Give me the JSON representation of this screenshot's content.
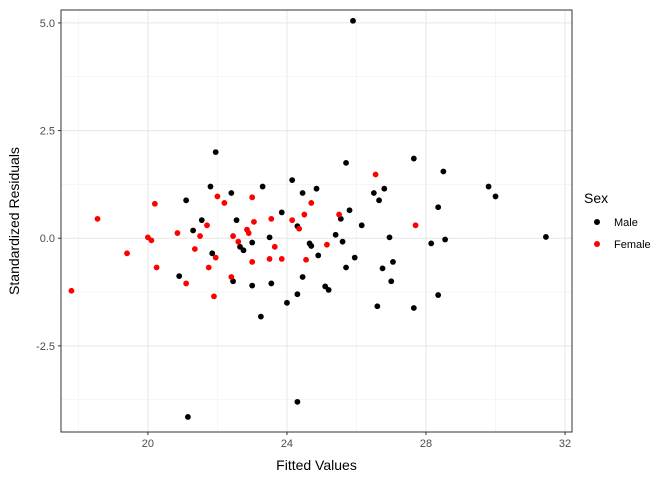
{
  "chart_data": {
    "type": "scatter",
    "xlabel": "Fitted Values",
    "ylabel": "Standardized Residuals",
    "xlim": [
      17.5,
      32.2
    ],
    "ylim": [
      -4.5,
      5.3
    ],
    "x_ticks": [
      20,
      24,
      28,
      32
    ],
    "y_ticks": [
      -2.5,
      0.0,
      2.5,
      5.0
    ],
    "x_tick_labels": [
      "20",
      "24",
      "28",
      "32"
    ],
    "y_tick_labels": [
      "-2.5",
      "0.0",
      "2.5",
      "5.0"
    ],
    "grid": true,
    "legend": {
      "title": "Sex",
      "position": "right",
      "entries": [
        {
          "label": "Male",
          "color": "#000000"
        },
        {
          "label": "Female",
          "color": "#ff0000"
        }
      ]
    },
    "series": [
      {
        "name": "Male",
        "color": "#000000",
        "points": [
          {
            "x": 25.9,
            "y": 5.05
          },
          {
            "x": 21.95,
            "y": 2.0
          },
          {
            "x": 25.7,
            "y": 1.75
          },
          {
            "x": 27.65,
            "y": 1.85
          },
          {
            "x": 28.5,
            "y": 1.55
          },
          {
            "x": 29.8,
            "y": 1.2
          },
          {
            "x": 30.0,
            "y": 0.97
          },
          {
            "x": 31.45,
            "y": 0.03
          },
          {
            "x": 21.8,
            "y": 1.2
          },
          {
            "x": 23.3,
            "y": 1.2
          },
          {
            "x": 24.15,
            "y": 1.35
          },
          {
            "x": 24.85,
            "y": 1.15
          },
          {
            "x": 26.8,
            "y": 1.15
          },
          {
            "x": 26.5,
            "y": 1.05
          },
          {
            "x": 26.65,
            "y": 0.88
          },
          {
            "x": 24.45,
            "y": 1.05
          },
          {
            "x": 22.4,
            "y": 1.05
          },
          {
            "x": 21.1,
            "y": 0.88
          },
          {
            "x": 21.55,
            "y": 0.42
          },
          {
            "x": 22.55,
            "y": 0.42
          },
          {
            "x": 23.85,
            "y": 0.6
          },
          {
            "x": 25.8,
            "y": 0.65
          },
          {
            "x": 26.15,
            "y": 0.3
          },
          {
            "x": 28.35,
            "y": 0.72
          },
          {
            "x": 24.3,
            "y": 0.28
          },
          {
            "x": 25.4,
            "y": 0.08
          },
          {
            "x": 23.5,
            "y": 0.02
          },
          {
            "x": 23.0,
            "y": -0.1
          },
          {
            "x": 22.65,
            "y": -0.2
          },
          {
            "x": 22.75,
            "y": -0.28
          },
          {
            "x": 24.65,
            "y": -0.12
          },
          {
            "x": 24.7,
            "y": -0.18
          },
          {
            "x": 25.6,
            "y": -0.08
          },
          {
            "x": 25.55,
            "y": 0.45
          },
          {
            "x": 26.95,
            "y": 0.02
          },
          {
            "x": 28.55,
            "y": -0.03
          },
          {
            "x": 28.15,
            "y": -0.12
          },
          {
            "x": 25.95,
            "y": -0.45
          },
          {
            "x": 24.9,
            "y": -0.4
          },
          {
            "x": 25.7,
            "y": -0.68
          },
          {
            "x": 26.75,
            "y": -0.7
          },
          {
            "x": 27.05,
            "y": -0.55
          },
          {
            "x": 20.9,
            "y": -0.88
          },
          {
            "x": 21.3,
            "y": 0.18
          },
          {
            "x": 21.85,
            "y": -0.35
          },
          {
            "x": 22.45,
            "y": -1.0
          },
          {
            "x": 23.0,
            "y": -1.1
          },
          {
            "x": 23.55,
            "y": -1.05
          },
          {
            "x": 24.45,
            "y": -0.9
          },
          {
            "x": 24.0,
            "y": -1.5
          },
          {
            "x": 24.3,
            "y": -1.3
          },
          {
            "x": 25.1,
            "y": -1.12
          },
          {
            "x": 25.2,
            "y": -1.2
          },
          {
            "x": 27.0,
            "y": -1.0
          },
          {
            "x": 26.6,
            "y": -1.58
          },
          {
            "x": 27.65,
            "y": -1.62
          },
          {
            "x": 28.35,
            "y": -1.32
          },
          {
            "x": 23.25,
            "y": -1.82
          },
          {
            "x": 21.15,
            "y": -4.15
          },
          {
            "x": 24.3,
            "y": -3.8
          }
        ]
      },
      {
        "name": "Female",
        "color": "#ff0000",
        "points": [
          {
            "x": 17.8,
            "y": -1.22
          },
          {
            "x": 18.55,
            "y": 0.45
          },
          {
            "x": 19.4,
            "y": -0.35
          },
          {
            "x": 20.0,
            "y": 0.02
          },
          {
            "x": 20.1,
            "y": -0.05
          },
          {
            "x": 20.2,
            "y": 0.8
          },
          {
            "x": 20.25,
            "y": -0.68
          },
          {
            "x": 20.85,
            "y": 0.12
          },
          {
            "x": 21.1,
            "y": -1.05
          },
          {
            "x": 21.35,
            "y": -0.25
          },
          {
            "x": 21.5,
            "y": 0.05
          },
          {
            "x": 21.7,
            "y": 0.3
          },
          {
            "x": 21.75,
            "y": -0.68
          },
          {
            "x": 21.9,
            "y": -1.35
          },
          {
            "x": 21.95,
            "y": -0.45
          },
          {
            "x": 22.0,
            "y": 0.97
          },
          {
            "x": 22.2,
            "y": 0.82
          },
          {
            "x": 22.4,
            "y": -0.9
          },
          {
            "x": 22.45,
            "y": 0.05
          },
          {
            "x": 22.6,
            "y": -0.08
          },
          {
            "x": 22.85,
            "y": 0.2
          },
          {
            "x": 22.9,
            "y": 0.12
          },
          {
            "x": 23.0,
            "y": 0.95
          },
          {
            "x": 23.05,
            "y": 0.38
          },
          {
            "x": 23.0,
            "y": -0.55
          },
          {
            "x": 23.5,
            "y": -0.48
          },
          {
            "x": 23.55,
            "y": 0.45
          },
          {
            "x": 23.65,
            "y": -0.2
          },
          {
            "x": 23.85,
            "y": -0.48
          },
          {
            "x": 24.15,
            "y": 0.42
          },
          {
            "x": 24.35,
            "y": 0.22
          },
          {
            "x": 24.5,
            "y": 0.55
          },
          {
            "x": 24.55,
            "y": -0.5
          },
          {
            "x": 24.7,
            "y": 0.82
          },
          {
            "x": 25.15,
            "y": -0.15
          },
          {
            "x": 25.5,
            "y": 0.55
          },
          {
            "x": 26.55,
            "y": 1.48
          },
          {
            "x": 27.7,
            "y": 0.3
          }
        ]
      }
    ]
  }
}
